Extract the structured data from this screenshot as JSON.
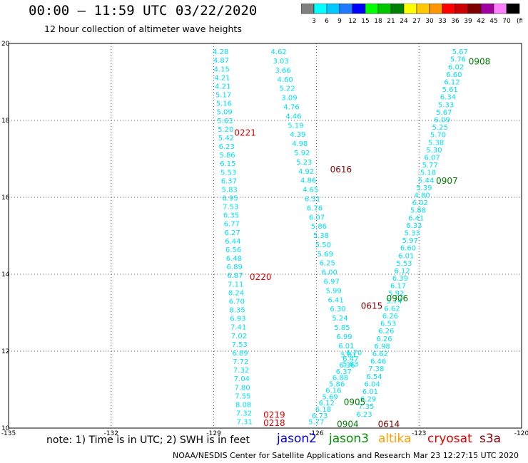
{
  "header": {
    "title": "00:00 – 11:59 UTC 03/22/2020",
    "subtitle": "12 hour collection of altimeter wave heights"
  },
  "colorbar": {
    "units_label": "(ft)",
    "ticks": [
      "3",
      "6",
      "9",
      "12",
      "15",
      "18",
      "21",
      "24",
      "27",
      "30",
      "33",
      "36",
      "39",
      "42",
      "45",
      "70"
    ],
    "colors": [
      "#808080",
      "#00ffff",
      "#00c8ff",
      "#1e7bff",
      "#0000ff",
      "#00ff00",
      "#00c800",
      "#008000",
      "#ffff00",
      "#ffc800",
      "#ff9600",
      "#ff0000",
      "#c80000",
      "#800000",
      "#a000a0",
      "#ff80ff",
      "#000000"
    ]
  },
  "chart_data": {
    "type": "scatter",
    "xlim": [
      -135,
      -120
    ],
    "ylim": [
      10,
      20
    ],
    "x_ticks": [
      "-135",
      "-132",
      "-129",
      "-126",
      "-123",
      "-120"
    ],
    "y_ticks": [
      "10",
      "12",
      "14",
      "16",
      "18",
      "20"
    ],
    "value_color": "#00e0f0",
    "tracks": [
      {
        "name": "track-a",
        "x0": -128.8,
        "x1": -128.1,
        "y0": 19.72,
        "y1": 10.1,
        "values": [
          "4.28",
          "4.87",
          "4.15",
          "4.21",
          "4.21",
          "5.17",
          "5.16",
          "5.09",
          "5.63",
          "5.20",
          "5.42",
          "6.23",
          "5.86",
          "6.15",
          "5.53",
          "6.37",
          "5.83",
          "6.95",
          "7.53",
          "6.35",
          "6.77",
          "6.27",
          "6.44",
          "6.56",
          "6.48",
          "6.89",
          "6.87",
          "7.11",
          "8.24",
          "6.70",
          "8.35",
          "6.93",
          "7.41",
          "7.02",
          "7.53",
          "6.89",
          "7.72",
          "7.32",
          "7.04",
          "7.80",
          "7.55",
          "8.08",
          "7.32",
          "7.31"
        ]
      },
      {
        "name": "track-b",
        "x0": -127.1,
        "x1": -125.0,
        "y0": 19.72,
        "y1": 11.6,
        "values": [
          "4.62",
          "3.03",
          "3.66",
          "4.60",
          "5.22",
          "3.09",
          "4.76",
          "4.46",
          "5.19",
          "4.39",
          "4.98",
          "5.92",
          "5.23",
          "4.92",
          "4.86",
          "4.65",
          "6.51",
          "6.76",
          "6.07",
          "5.86",
          "5.38",
          "5.50",
          "5.69",
          "6.25",
          "6.00",
          "6.97",
          "5.99",
          "6.41",
          "6.30",
          "5.24",
          "5.85",
          "6.99",
          "6.01",
          "5.81",
          "5.83"
        ]
      },
      {
        "name": "track-c",
        "x0": -124.9,
        "x1": -126.0,
        "y0": 11.9,
        "y1": 10.1,
        "values": [
          "6.70",
          "6.47",
          "6.36",
          "6.37",
          "6.88",
          "5.86",
          "6.16",
          "5.69",
          "6.12",
          "6.18",
          "6.73",
          "5.77"
        ]
      },
      {
        "name": "track-d",
        "x0": -121.8,
        "x1": -124.6,
        "y0": 19.72,
        "y1": 10.3,
        "values": [
          "5.67",
          "5.76",
          "6.02",
          "6.60",
          "6.12",
          "5.61",
          "6.34",
          "5.33",
          "5.67",
          "6.09",
          "5.25",
          "5.70",
          "5.38",
          "5.30",
          "6.07",
          "5.77",
          "5.18",
          "5.44",
          "5.39",
          "4.80",
          "6.02",
          "5.88",
          "6.41",
          "6.33",
          "5.33",
          "5.97",
          "6.60",
          "6.01",
          "5.53",
          "6.12",
          "6.39",
          "6.17",
          "5.92",
          "5.74",
          "6.62",
          "6.26",
          "6.53",
          "6.26",
          "6.26",
          "6.98",
          "6.62",
          "6.46",
          "7.38",
          "6.54",
          "6.04",
          "6.01",
          "6.29",
          "7.35",
          "6.23"
        ]
      }
    ],
    "time_labels": [
      {
        "text": "0221",
        "x": -128.4,
        "y": 17.6,
        "color": "#e00000"
      },
      {
        "text": "0220",
        "x": -127.95,
        "y": 13.85,
        "color": "#e00000"
      },
      {
        "text": "0219",
        "x": -127.55,
        "y": 10.27,
        "color": "#e00000"
      },
      {
        "text": "0218",
        "x": -127.55,
        "y": 10.06,
        "color": "#e00000"
      },
      {
        "text": "0616",
        "x": -125.6,
        "y": 16.65,
        "color": "#800000"
      },
      {
        "text": "0615",
        "x": -124.7,
        "y": 13.1,
        "color": "#800000"
      },
      {
        "text": "0614",
        "x": -124.2,
        "y": 10.03,
        "color": "#800000"
      },
      {
        "text": "0908",
        "x": -121.55,
        "y": 19.45,
        "color": "#008000"
      },
      {
        "text": "0907",
        "x": -122.5,
        "y": 16.35,
        "color": "#008000"
      },
      {
        "text": "0906",
        "x": -123.95,
        "y": 13.3,
        "color": "#008000"
      },
      {
        "text": "0905",
        "x": -125.2,
        "y": 10.6,
        "color": "#008000"
      },
      {
        "text": "0904",
        "x": -125.4,
        "y": 10.03,
        "color": "#008000"
      }
    ]
  },
  "footer": {
    "note": "note: 1) Time is in UTC; 2) SWH is in feet",
    "satellites": [
      {
        "name": "jason2",
        "color": "#0000e0"
      },
      {
        "name": "jason3",
        "color": "#009000"
      },
      {
        "name": "altika",
        "color": "#ffa000"
      },
      {
        "name": "cryosat",
        "color": "#e00000"
      },
      {
        "name": "s3a",
        "color": "#800000"
      }
    ],
    "credit": "NOAA/NESDIS Center for Satellite Applications and Research",
    "timestamp": "Mar 23 12:27:15 UTC 2020"
  }
}
